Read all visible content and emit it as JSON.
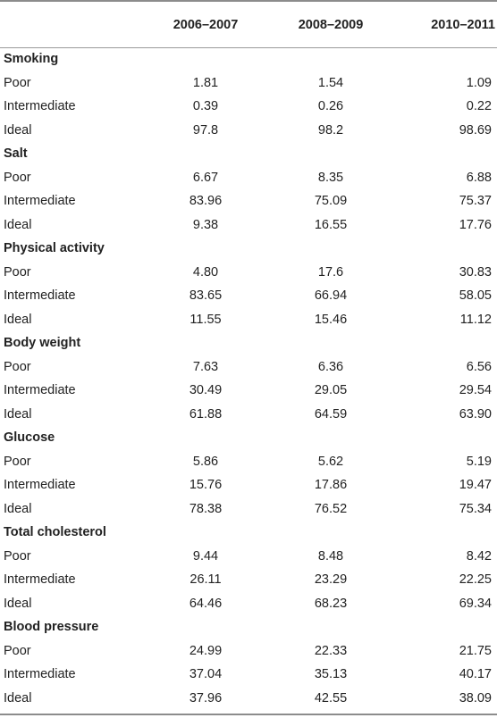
{
  "header": {
    "label": "",
    "years": [
      "2006–2007",
      "2008–2009",
      "2010–2011"
    ]
  },
  "sections": [
    {
      "title": "Smoking",
      "rows": [
        {
          "label": "Poor",
          "values": [
            "1.81",
            "1.54",
            "1.09"
          ]
        },
        {
          "label": "Intermediate",
          "values": [
            "0.39",
            "0.26",
            "0.22"
          ]
        },
        {
          "label": "Ideal",
          "values": [
            "97.8",
            "98.2",
            "98.69"
          ]
        }
      ]
    },
    {
      "title": "Salt",
      "rows": [
        {
          "label": "Poor",
          "values": [
            "6.67",
            "8.35",
            "6.88"
          ]
        },
        {
          "label": "Intermediate",
          "values": [
            "83.96",
            "75.09",
            "75.37"
          ]
        },
        {
          "label": "Ideal",
          "values": [
            "9.38",
            "16.55",
            "17.76"
          ]
        }
      ]
    },
    {
      "title": "Physical activity",
      "rows": [
        {
          "label": "Poor",
          "values": [
            "4.80",
            "17.6",
            "30.83"
          ]
        },
        {
          "label": "Intermediate",
          "values": [
            "83.65",
            "66.94",
            "58.05"
          ]
        },
        {
          "label": "Ideal",
          "values": [
            "11.55",
            "15.46",
            "11.12"
          ]
        }
      ]
    },
    {
      "title": "Body weight",
      "rows": [
        {
          "label": "Poor",
          "values": [
            "7.63",
            "6.36",
            "6.56"
          ]
        },
        {
          "label": "Intermediate",
          "values": [
            "30.49",
            "29.05",
            "29.54"
          ]
        },
        {
          "label": "Ideal",
          "values": [
            "61.88",
            "64.59",
            "63.90"
          ]
        }
      ]
    },
    {
      "title": "Glucose",
      "rows": [
        {
          "label": "Poor",
          "values": [
            "5.86",
            "5.62",
            "5.19"
          ]
        },
        {
          "label": "Intermediate",
          "values": [
            "15.76",
            "17.86",
            "19.47"
          ]
        },
        {
          "label": "Ideal",
          "values": [
            "78.38",
            "76.52",
            "75.34"
          ]
        }
      ]
    },
    {
      "title": "Total cholesterol",
      "rows": [
        {
          "label": "Poor",
          "values": [
            "9.44",
            "8.48",
            "8.42"
          ]
        },
        {
          "label": "Intermediate",
          "values": [
            "26.11",
            "23.29",
            "22.25"
          ]
        },
        {
          "label": "Ideal",
          "values": [
            "64.46",
            "68.23",
            "69.34"
          ]
        }
      ]
    },
    {
      "title": "Blood pressure",
      "rows": [
        {
          "label": "Poor",
          "values": [
            "24.99",
            "22.33",
            "21.75"
          ]
        },
        {
          "label": "Intermediate",
          "values": [
            "37.04",
            "35.13",
            "40.17"
          ]
        },
        {
          "label": "Ideal",
          "values": [
            "37.96",
            "42.55",
            "38.09"
          ]
        }
      ]
    }
  ]
}
